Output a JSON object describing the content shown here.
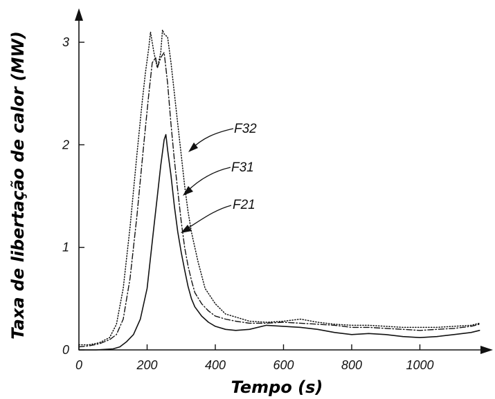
{
  "chart_data": {
    "type": "line",
    "xlabel": "Tempo (s)",
    "ylabel": "Taxa de libertação de calor (MW)",
    "xlim": [
      0,
      1180
    ],
    "ylim": [
      0,
      3.3
    ],
    "xticks": [
      0,
      200,
      400,
      600,
      800,
      1000
    ],
    "yticks": [
      0,
      1,
      2,
      3
    ],
    "grid": false,
    "legend": "inline annotations with arrows",
    "series": [
      {
        "name": "F32",
        "style": "dotted",
        "x": [
          0,
          30,
          60,
          90,
          110,
          130,
          150,
          170,
          185,
          195,
          205,
          210,
          220,
          230,
          240,
          245,
          250,
          260,
          270,
          280,
          290,
          300,
          310,
          320,
          330,
          340,
          350,
          370,
          400,
          430,
          460,
          500,
          550,
          600,
          650,
          700,
          750,
          800,
          850,
          900,
          950,
          1000,
          1050,
          1100,
          1150,
          1175
        ],
        "values": [
          0.05,
          0.05,
          0.07,
          0.12,
          0.25,
          0.6,
          1.2,
          1.9,
          2.4,
          2.7,
          2.95,
          3.1,
          2.9,
          2.75,
          2.9,
          3.12,
          3.08,
          3.05,
          2.8,
          2.5,
          2.2,
          1.9,
          1.6,
          1.35,
          1.15,
          1.0,
          0.85,
          0.6,
          0.45,
          0.35,
          0.32,
          0.28,
          0.27,
          0.28,
          0.3,
          0.27,
          0.25,
          0.24,
          0.24,
          0.23,
          0.22,
          0.22,
          0.22,
          0.23,
          0.24,
          0.26
        ]
      },
      {
        "name": "F31",
        "style": "dash-dot",
        "x": [
          0,
          30,
          60,
          90,
          110,
          130,
          150,
          170,
          190,
          205,
          215,
          225,
          230,
          240,
          250,
          260,
          270,
          280,
          290,
          300,
          310,
          320,
          330,
          340,
          360,
          380,
          400,
          430,
          460,
          500,
          550,
          600,
          650,
          700,
          750,
          800,
          850,
          900,
          950,
          1000,
          1050,
          1100,
          1150,
          1175
        ],
        "values": [
          0.03,
          0.04,
          0.06,
          0.1,
          0.15,
          0.3,
          0.7,
          1.3,
          2.0,
          2.5,
          2.8,
          2.85,
          2.75,
          2.85,
          2.9,
          2.6,
          2.2,
          1.85,
          1.55,
          1.25,
          1.0,
          0.82,
          0.68,
          0.56,
          0.45,
          0.38,
          0.33,
          0.3,
          0.28,
          0.26,
          0.26,
          0.27,
          0.26,
          0.25,
          0.24,
          0.22,
          0.22,
          0.21,
          0.2,
          0.19,
          0.2,
          0.21,
          0.23,
          0.25
        ]
      },
      {
        "name": "F21",
        "style": "solid",
        "x": [
          0,
          50,
          100,
          120,
          140,
          160,
          180,
          200,
          210,
          220,
          230,
          240,
          250,
          255,
          260,
          270,
          280,
          290,
          300,
          310,
          320,
          330,
          340,
          360,
          380,
          400,
          430,
          460,
          500,
          550,
          600,
          650,
          700,
          750,
          800,
          850,
          900,
          950,
          1000,
          1050,
          1100,
          1150,
          1175
        ],
        "values": [
          0.0,
          0.0,
          0.01,
          0.03,
          0.08,
          0.15,
          0.3,
          0.6,
          0.9,
          1.2,
          1.5,
          1.8,
          2.05,
          2.1,
          1.95,
          1.7,
          1.4,
          1.15,
          0.95,
          0.78,
          0.62,
          0.5,
          0.42,
          0.33,
          0.27,
          0.23,
          0.2,
          0.19,
          0.2,
          0.24,
          0.23,
          0.22,
          0.2,
          0.17,
          0.15,
          0.16,
          0.15,
          0.13,
          0.12,
          0.13,
          0.15,
          0.17,
          0.19
        ]
      }
    ]
  }
}
